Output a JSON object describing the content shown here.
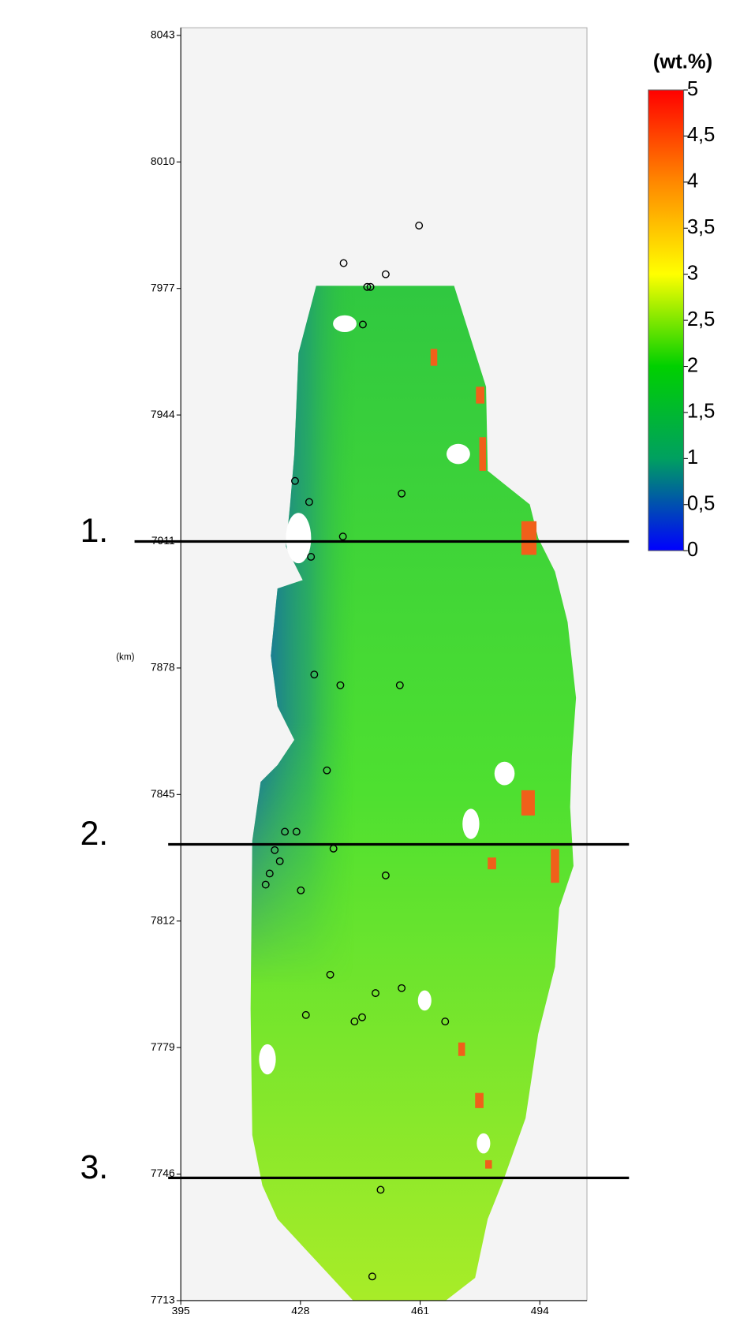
{
  "chart_data": {
    "type": "map",
    "y_label": "(km)",
    "xlim": [
      395,
      507
    ],
    "ylim": [
      7713,
      8045
    ],
    "xticks": [
      395,
      428,
      461,
      494
    ],
    "yticks": [
      7713,
      7746,
      7779,
      7812,
      7845,
      7878,
      7911,
      7944,
      7977,
      8010,
      8043
    ],
    "samples": {
      "x": [
        460.7,
        439.9,
        451.5,
        446.4,
        447.3,
        445.2,
        426.5,
        455.9,
        430.4,
        439.7,
        430.9,
        431.8,
        439.0,
        455.4,
        435.3,
        423.7,
        426.9,
        437.1,
        420.9,
        422.3,
        419.5,
        418.4,
        451.5,
        428.1,
        436.2,
        455.9,
        448.7,
        429.5,
        445.0,
        442.9,
        467.9,
        450.1,
        447.8
      ],
      "y": [
        7993.4,
        7983.6,
        7980.7,
        7977.4,
        7977.4,
        7967.6,
        7926.8,
        7923.5,
        7921.3,
        7912.3,
        7907.0,
        7876.3,
        7873.5,
        7873.5,
        7851.3,
        7835.3,
        7835.3,
        7830.9,
        7830.5,
        7827.6,
        7824.4,
        7821.5,
        7823.9,
        7820.0,
        7798.0,
        7794.5,
        7793.2,
        7787.5,
        7786.9,
        7785.8,
        7785.8,
        7741.9,
        7719.3
      ]
    },
    "sections": [
      {
        "label": "1.",
        "y": 7911
      },
      {
        "label": "2.",
        "y": 7832
      },
      {
        "label": "3.",
        "y": 7745
      }
    ],
    "colorbar": {
      "title": "(wt.%)",
      "clim": [
        0,
        5
      ],
      "colors": [
        "#0000ff",
        "#00a060",
        "#00d000",
        "#ffff00",
        "#ff8800",
        "#ff0000"
      ],
      "ticks": [
        0,
        {
          "value": 0.5,
          "label": "0,5"
        },
        1,
        {
          "value": 1.5,
          "label": "1,5"
        },
        2,
        {
          "value": 2.5,
          "label": "2,5"
        },
        3,
        {
          "value": 3.5,
          "label": "3,5"
        },
        4,
        {
          "value": 4.5,
          "label": "4,5"
        },
        5
      ]
    }
  }
}
